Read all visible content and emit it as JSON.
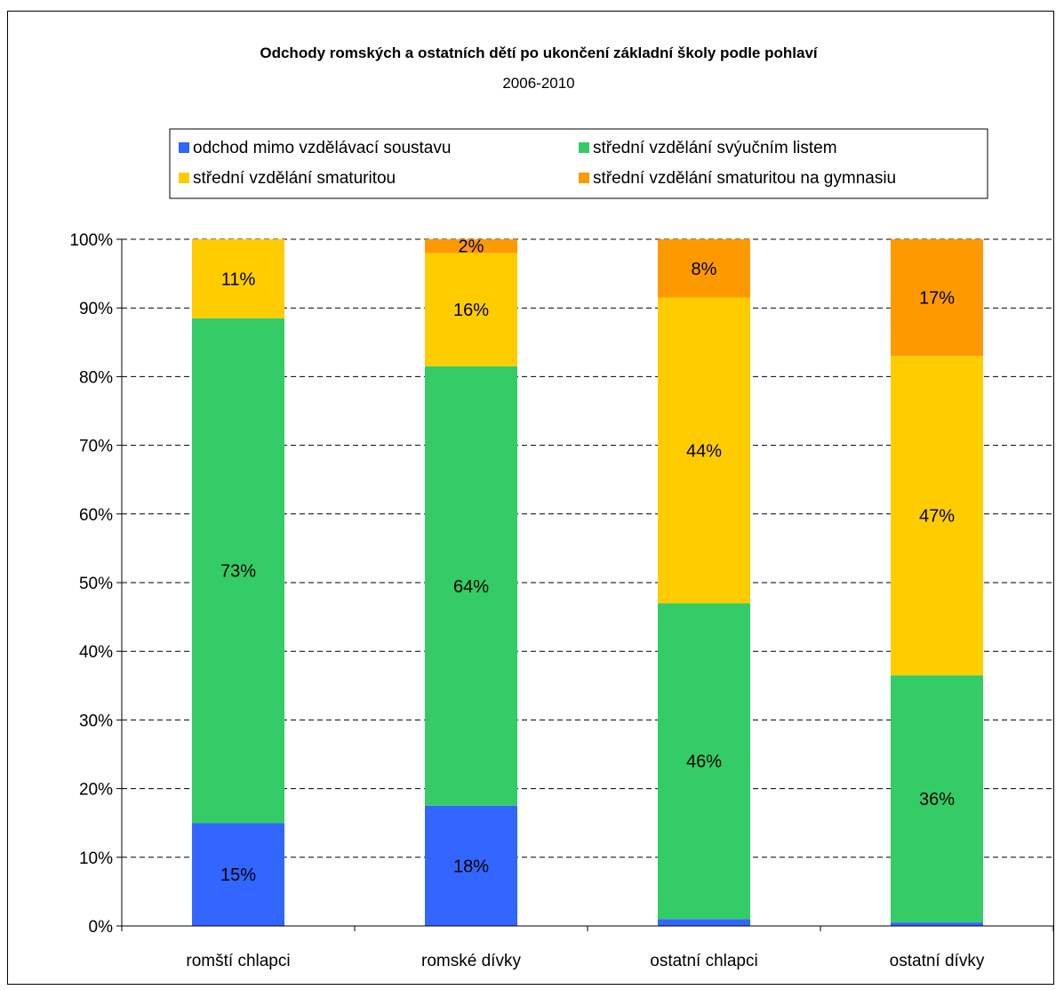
{
  "chart_data": {
    "type": "bar",
    "stacked": true,
    "percent": true,
    "title": "Odchody romských a ostatních dětí po ukončení základní školy podle pohlaví",
    "subtitle": "2006-2010",
    "categories": [
      "romští chlapci",
      "romské dívky",
      "ostatní chlapci",
      "ostatní dívky"
    ],
    "series": [
      {
        "name": "odchod mimo vzdělávací soustavu",
        "color": "#3366ff",
        "values": [
          15,
          17.5,
          1,
          0.5
        ],
        "labels": [
          "15%",
          "18%",
          "",
          ""
        ]
      },
      {
        "name": "střední vzdělání svýučním listem",
        "color": "#33cc66",
        "values": [
          73.5,
          64,
          46,
          36
        ],
        "labels": [
          "73%",
          "64%",
          "46%",
          "36%"
        ]
      },
      {
        "name": "střední vzdělání smaturitou",
        "color": "#ffcc00",
        "values": [
          11.5,
          16.5,
          44.5,
          46.5
        ],
        "labels": [
          "11%",
          "16%",
          "44%",
          "47%"
        ]
      },
      {
        "name": "střední vzdělání smaturitou na gymnasiu",
        "color": "#ff9900",
        "values": [
          0,
          2,
          8.5,
          17
        ],
        "labels": [
          "",
          "2%",
          "8%",
          "17%"
        ]
      }
    ],
    "yticks": [
      "0%",
      "10%",
      "20%",
      "30%",
      "40%",
      "50%",
      "60%",
      "70%",
      "80%",
      "90%",
      "100%"
    ],
    "ylim": [
      0,
      100
    ],
    "grid": "dashed horizontal",
    "legend_position": "top"
  }
}
